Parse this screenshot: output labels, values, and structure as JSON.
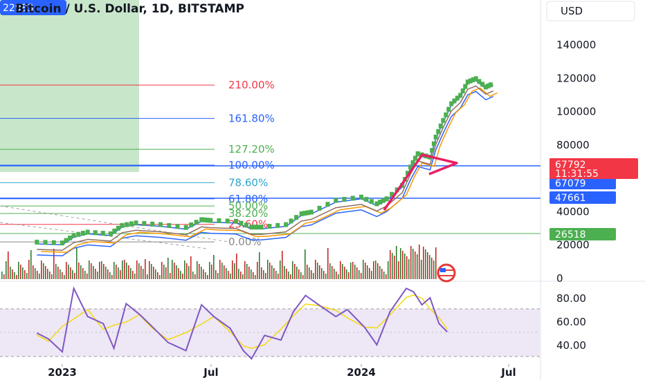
{
  "header": {
    "title": "Bitcoin / U.S. Dollar, 1D, BITSTAMP",
    "symbol_badge": "22983",
    "currency_button": "USD"
  },
  "colors": {
    "up": "#4caf50",
    "down": "#e53935",
    "bb": "#2962ff",
    "ma": "#ff9800",
    "rsi": "#7e57c2",
    "rsi_ma": "#f5d90a",
    "pattern": "#e91e63",
    "fib_red": "#f23645",
    "fib_blue": "#2962ff",
    "fib_green": "#4caf50",
    "fib_teal": "#2ba8c8"
  },
  "chart_data": [
    {
      "type": "line",
      "title": "Bitcoin / U.S. Dollar, 1D, BITSTAMP",
      "x_ticks": [
        "2023",
        "Jul",
        "2024",
        "Jul"
      ],
      "y_ticks": [
        "140000",
        "120000",
        "100000",
        "80000",
        "40000",
        "20000",
        "0"
      ],
      "ylim": [
        0,
        160000
      ],
      "series": [
        {
          "x": [
            "2022-12-01",
            "2023-01-01",
            "2023-01-15",
            "2023-02-01",
            "2023-03-01",
            "2023-03-15",
            "2023-04-01",
            "2023-05-01",
            "2023-06-01",
            "2023-06-20",
            "2023-07-01",
            "2023-08-01",
            "2023-08-20",
            "2023-09-01",
            "2023-10-01",
            "2023-10-20",
            "2023-11-01",
            "2023-12-01",
            "2024-01-01",
            "2024-01-20",
            "2024-02-01",
            "2024-02-20",
            "2024-03-01",
            "2024-03-10",
            "2024-03-25",
            "2024-04-01",
            "2024-04-10",
            "2024-04-20",
            "2024-05-01",
            "2024-05-10",
            "2024-05-20",
            "2024-06-01",
            "2024-06-10"
          ],
          "values": [
            17000,
            16500,
            21000,
            23000,
            22000,
            27000,
            28500,
            27500,
            25800,
            30500,
            30000,
            29500,
            26000,
            26000,
            27500,
            34000,
            35000,
            42000,
            44000,
            40000,
            43000,
            51000,
            62000,
            70000,
            68000,
            80000,
            90000,
            100000,
            105000,
            113000,
            115000,
            110000,
            112000
          ]
        }
      ],
      "fib_levels": [
        {
          "label": "210.00%",
          "value": 115500,
          "color": "#f23645"
        },
        {
          "label": "161.80%",
          "value": 95500,
          "color": "#2962ff"
        },
        {
          "label": "127.20%",
          "value": 77000,
          "color": "#4caf50"
        },
        {
          "label": "100.00%",
          "value": 67500,
          "color": "#2962ff"
        },
        {
          "label": "78.60%",
          "value": 57000,
          "color": "#2ba8c8"
        },
        {
          "label": "61.80%",
          "value": 47300,
          "color": "#2962ff"
        },
        {
          "label": "50.00%",
          "value": 43000,
          "color": "#4caf50"
        },
        {
          "label": "38.20%",
          "value": 38500,
          "color": "#4caf50"
        },
        {
          "label": "23.60%",
          "value": 32000,
          "color": "#f23645"
        },
        {
          "label": "0.00%",
          "value": 21500,
          "color": "#888888"
        }
      ],
      "price_badges": [
        {
          "label": "67792",
          "value": 67792,
          "color": "#f23645"
        },
        {
          "label": "11:31:55",
          "value": 62900,
          "color": "#f23645"
        },
        {
          "label": "67079",
          "value": 57400,
          "color": "#2962ff"
        },
        {
          "label": "47661",
          "value": 47661,
          "color": "#2962ff"
        },
        {
          "label": "26518",
          "value": 26518,
          "color": "#4caf50"
        }
      ]
    },
    {
      "type": "line",
      "title": "",
      "y_ticks": [
        "80.00",
        "60.00",
        "40.00"
      ],
      "ylim": [
        27,
        93
      ],
      "series": [
        {
          "x": [
            "2022-12-01",
            "2022-12-15",
            "2023-01-01",
            "2023-01-15",
            "2023-02-01",
            "2023-02-20",
            "2023-03-05",
            "2023-03-20",
            "2023-04-05",
            "2023-04-20",
            "2023-05-10",
            "2023-06-01",
            "2023-06-20",
            "2023-07-05",
            "2023-07-25",
            "2023-08-10",
            "2023-08-20",
            "2023-09-05",
            "2023-09-25",
            "2023-10-10",
            "2023-10-25",
            "2023-11-10",
            "2023-12-01",
            "2023-12-15",
            "2024-01-05",
            "2024-01-20",
            "2024-02-05",
            "2024-02-25",
            "2024-03-05",
            "2024-03-15",
            "2024-03-25",
            "2024-04-05",
            "2024-04-15"
          ],
          "values": [
            50,
            45,
            34,
            88,
            64,
            58,
            37,
            75,
            66,
            56,
            42,
            35,
            74,
            64,
            54,
            35,
            28,
            48,
            44,
            68,
            82,
            74,
            64,
            70,
            55,
            40,
            68,
            88,
            85,
            74,
            80,
            58,
            51
          ]
        }
      ]
    }
  ]
}
